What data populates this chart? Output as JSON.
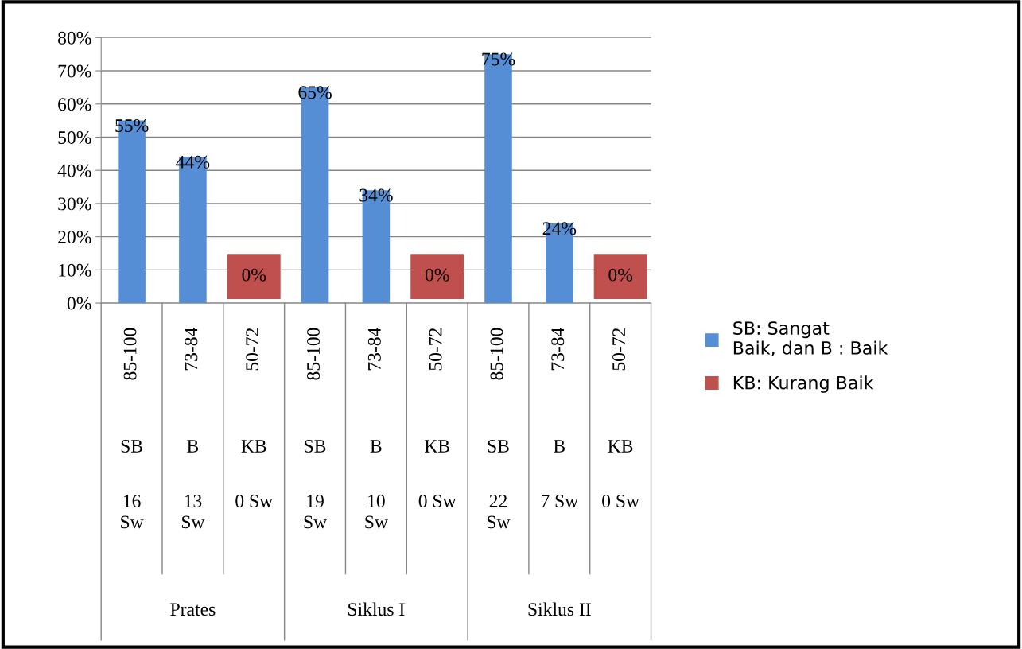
{
  "chart_data": {
    "type": "bar",
    "categories": [
      "85-100\nSB\n16\nSw",
      "73-84\nB\n13\nSw",
      "50-72\nKB\n0 Sw",
      "85-100\nSB\n19\nSw",
      "73-84\nB\n10\nSw",
      "50-72\nKB\n0 Sw",
      "85-100\nSB\n22\nSw",
      "73-84\nB\n7 Sw",
      "50-72\nKB\n0 Sw"
    ],
    "series": [
      {
        "name": "SB: Sangat\nBaik, dan B : Baik",
        "color": "#558ed5",
        "values": [
          55,
          44,
          null,
          65,
          34,
          null,
          75,
          24,
          null
        ],
        "value_labels": [
          "55%",
          "44%",
          null,
          "65%",
          "34%",
          null,
          "75%",
          "24%",
          null
        ]
      },
      {
        "name": "KB: Kurang Baik",
        "color": "#c0504d",
        "values": [
          null,
          null,
          0,
          null,
          null,
          0,
          null,
          null,
          0
        ],
        "value_labels": [
          null,
          null,
          "0%",
          null,
          null,
          "0%",
          null,
          null,
          "0%"
        ]
      }
    ],
    "annotations": [
      "Prates",
      "Siklus I",
      "Siklus II"
    ],
    "ylim": [
      0,
      80
    ],
    "yticks": [
      {
        "value": 0,
        "label": "0%"
      },
      {
        "value": 10,
        "label": "10%"
      },
      {
        "value": 20,
        "label": "20%"
      },
      {
        "value": 30,
        "label": "30%"
      },
      {
        "value": 40,
        "label": "40%"
      },
      {
        "value": 50,
        "label": "50%"
      },
      {
        "value": 60,
        "label": "60%"
      },
      {
        "value": 70,
        "label": "70%"
      },
      {
        "value": 80,
        "label": "80%"
      }
    ],
    "grid": "y",
    "legend": "right"
  }
}
